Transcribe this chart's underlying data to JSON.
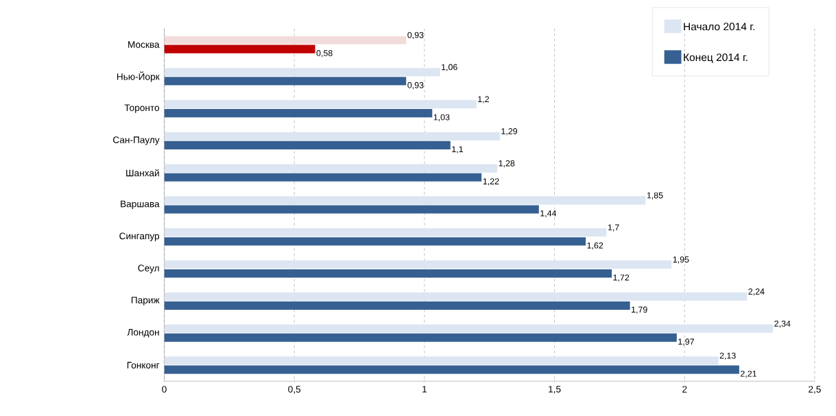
{
  "chart_data": {
    "type": "bar",
    "orientation": "horizontal",
    "categories": [
      "Москва",
      "Нью-Йорк",
      "Торонто",
      "Сан-Паулу",
      "Шанхай",
      "Варшава",
      "Сингапур",
      "Сеул",
      "Париж",
      "Лондон",
      "Гонконг"
    ],
    "series": [
      {
        "name": "Начало 2014 г.",
        "color": "#dce6f2",
        "colors": [
          "#f2dcdb",
          "#dce6f2",
          "#dce6f2",
          "#dce6f2",
          "#dce6f2",
          "#dce6f2",
          "#dce6f2",
          "#dce6f2",
          "#dce6f2",
          "#dce6f2",
          "#dce6f2"
        ],
        "values": [
          0.93,
          1.06,
          1.2,
          1.29,
          1.28,
          1.85,
          1.7,
          1.95,
          2.24,
          2.34,
          2.13
        ],
        "value_labels": [
          "0,93",
          "1,06",
          "1,2",
          "1,29",
          "1,28",
          "1,85",
          "1,7",
          "1,95",
          "2,24",
          "2,34",
          "2,13"
        ]
      },
      {
        "name": "Конец 2014 г.",
        "color": "#376092",
        "colors": [
          "#c00000",
          "#376092",
          "#376092",
          "#376092",
          "#376092",
          "#376092",
          "#376092",
          "#376092",
          "#376092",
          "#376092",
          "#376092"
        ],
        "values": [
          0.58,
          0.93,
          1.03,
          1.1,
          1.22,
          1.44,
          1.62,
          1.72,
          1.79,
          1.97,
          2.21
        ],
        "value_labels": [
          "0,58",
          "0,93",
          "1,03",
          "1,1",
          "1,22",
          "1,44",
          "1,62",
          "1,72",
          "1,79",
          "1,97",
          "2,21"
        ]
      }
    ],
    "xlim": [
      0,
      2.5
    ],
    "xticks": [
      0,
      {
        "value": 0.5,
        "label": "0,5"
      },
      1,
      {
        "value": 1.5,
        "label": "1,5"
      },
      2,
      {
        "value": 2.5,
        "label": "2,5"
      }
    ],
    "grid": "x",
    "legend": "top right"
  }
}
